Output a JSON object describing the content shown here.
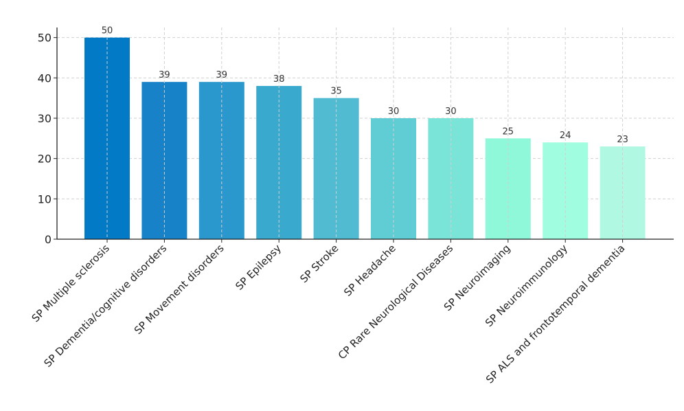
{
  "chart_data": {
    "type": "bar",
    "title": "",
    "xlabel": "",
    "ylabel": "",
    "categories": [
      "SP Multiple sclerosis",
      "SP Dementia/cognitive disorders",
      "SP Movement disorders",
      "SP Epilepsy",
      "SP Stroke",
      "SP Headache",
      "CP Rare Neurological Diseases",
      "SP Neuroimaging",
      "SP Neuroimmunology",
      "SP ALS and frontotemporal dementia"
    ],
    "values": [
      50,
      39,
      39,
      38,
      35,
      30,
      30,
      25,
      24,
      23
    ],
    "colors": [
      "#027ac6",
      "#1882c8",
      "#2a97cd",
      "#3aa9ce",
      "#50bbd1",
      "#60ccd3",
      "#79e4d7",
      "#8ef8d9",
      "#a1fde0",
      "#b1f8e2"
    ],
    "ylim": [
      0,
      52.5
    ],
    "yticks": [
      0,
      10,
      20,
      30,
      40,
      50
    ],
    "grid": true,
    "data_labels": true,
    "legend": "none"
  }
}
